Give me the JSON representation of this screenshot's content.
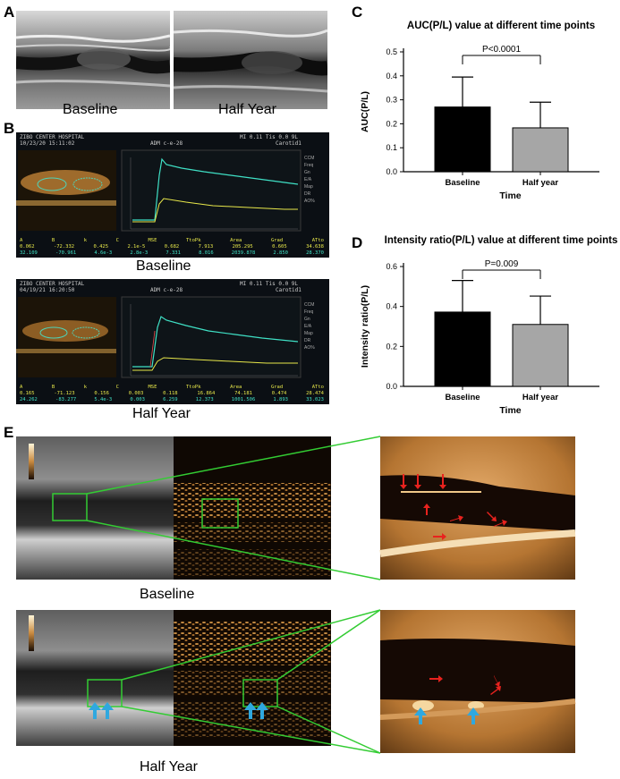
{
  "panels": {
    "A": {
      "label": "A",
      "captions": [
        "Baseline",
        "Half Year"
      ]
    },
    "B": {
      "label": "B",
      "captions": [
        "Baseline",
        "Half Year"
      ],
      "screen1": {
        "hospital": "ZIBO CENTER HOSPITAL",
        "datetime": "10/23/20 15:11:02",
        "mode": "ADM  c-e-28",
        "params": "MI 0.11   Tis 0.0   9L",
        "preset": "Carotid1",
        "date_small": "10/23/20",
        "table_headers": [
          "A",
          "B",
          "k",
          "C",
          "MSE",
          "TtoPk",
          "Area",
          "Grad",
          "ATto"
        ],
        "row1": [
          "0.062",
          "-72.332",
          "0.425",
          "2.1e-5",
          "0.682",
          "7.913",
          "205.295",
          "0.605",
          "34.638"
        ],
        "row2": [
          "32.109",
          "-70.961",
          "4.6e-3",
          "2.8e-3",
          "7.331",
          "8.016",
          "2039.878",
          "2.850",
          "28.370"
        ]
      },
      "screen2": {
        "hospital": "ZIBO CENTER HOSPITAL",
        "datetime": "04/19/21 16:20:50",
        "mode": "ADM  c-e-28",
        "params": "MI 0.11   Tis 0.0   9L",
        "preset": "Carotid1",
        "date_small": "04/19/21",
        "table_headers": [
          "A",
          "B",
          "k",
          "C",
          "MSE",
          "TtoPk",
          "Area",
          "Grad",
          "ATto"
        ],
        "row1": [
          "0.165",
          "-71.123",
          "0.156",
          "0.003",
          "0.118",
          "16.864",
          "74.181",
          "0.474",
          "28.474"
        ],
        "row2": [
          "24.262",
          "-83.277",
          "5.4e-3",
          "0.003",
          "6.259",
          "12.373",
          "1001.506",
          "1.893",
          "33.023"
        ]
      }
    },
    "C": {
      "label": "C",
      "chart_data": {
        "type": "bar",
        "title": "AUC(P/L) value at different time points",
        "categories": [
          "Baseline",
          "Half year"
        ],
        "values": [
          0.27,
          0.183
        ],
        "error_upper": [
          0.395,
          0.29
        ],
        "xlabel": "Time",
        "ylabel": "AUC(P/L)",
        "ylim": [
          0,
          0.5
        ],
        "yticks": [
          "0.0",
          "0.1",
          "0.2",
          "0.3",
          "0.4",
          "0.5"
        ],
        "significance": "P<0.0001",
        "colors": [
          "#000000",
          "#a6a6a6"
        ]
      }
    },
    "D": {
      "label": "D",
      "chart_data": {
        "type": "bar",
        "title": "Intensity ratio(P/L) value at different time points",
        "categories": [
          "Baseline",
          "Half year"
        ],
        "values": [
          0.372,
          0.31
        ],
        "error_upper": [
          0.53,
          0.452
        ],
        "xlabel": "Time",
        "ylabel": "Intensity ratio(P/L)",
        "ylim": [
          0,
          0.6
        ],
        "yticks": [
          "0.0",
          "0.2",
          "0.4",
          "0.6"
        ],
        "significance": "P=0.009",
        "colors": [
          "#000000",
          "#a6a6a6"
        ]
      }
    },
    "E": {
      "label": "E",
      "captions": [
        "Baseline",
        "Half Year"
      ]
    }
  }
}
